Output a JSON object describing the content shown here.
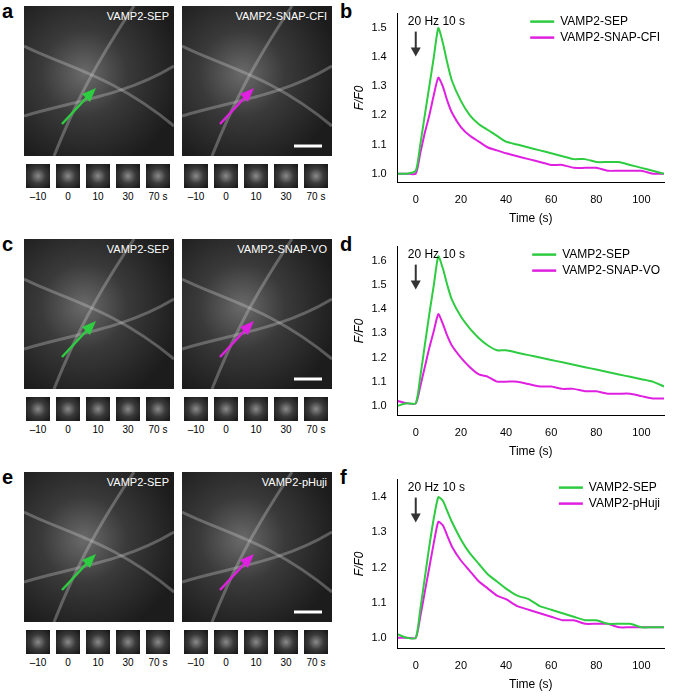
{
  "panels": [
    {
      "letter": "a",
      "images": [
        "VAMP2-SEP",
        "VAMP2-SNAP-CFI"
      ],
      "times": [
        "–10",
        "0",
        "10",
        "30",
        "70 s"
      ]
    },
    {
      "letter": "c",
      "images": [
        "VAMP2-SEP",
        "VAMP2-SNAP-VO"
      ],
      "times": [
        "–10",
        "0",
        "10",
        "30",
        "70 s"
      ]
    },
    {
      "letter": "e",
      "images": [
        "VAMP2-SEP",
        "VAMP2-pHuji"
      ],
      "times": [
        "–10",
        "0",
        "10",
        "30",
        "70 s"
      ]
    }
  ],
  "chart_data": [
    {
      "letter": "b",
      "type": "line",
      "x_label": "Time (s)",
      "y_label": "F/F0",
      "annotation": {
        "text": "20 Hz 10 s",
        "x": 0
      },
      "legend": "upper right",
      "grid": false,
      "xlim": [
        -8,
        110
      ],
      "xticks": [
        0,
        20,
        40,
        60,
        80,
        100
      ],
      "ylim": [
        0.97,
        1.55
      ],
      "yticks": [
        {
          "value": 1,
          "label": "1.0"
        },
        1.1,
        1.2,
        1.3,
        1.4,
        1.5
      ],
      "x": [
        -8,
        -4,
        0,
        2,
        4,
        6,
        8,
        10,
        12,
        14,
        16,
        20,
        24,
        28,
        32,
        36,
        40,
        45,
        50,
        55,
        60,
        65,
        70,
        75,
        80,
        85,
        90,
        95,
        100,
        105,
        110
      ],
      "series": [
        {
          "name": "VAMP2-SEP",
          "color": "#2ecc40",
          "values": [
            1.0,
            1.0,
            1.01,
            1.1,
            1.2,
            1.3,
            1.4,
            1.5,
            1.45,
            1.38,
            1.32,
            1.25,
            1.2,
            1.17,
            1.15,
            1.13,
            1.11,
            1.1,
            1.09,
            1.08,
            1.07,
            1.06,
            1.05,
            1.05,
            1.04,
            1.04,
            1.04,
            1.03,
            1.02,
            1.01,
            1.0
          ]
        },
        {
          "name": "VAMP2-SNAP-CFI",
          "color": "#e020e0",
          "values": [
            1.0,
            1.0,
            1.0,
            1.07,
            1.14,
            1.2,
            1.27,
            1.33,
            1.3,
            1.25,
            1.21,
            1.16,
            1.13,
            1.11,
            1.09,
            1.08,
            1.07,
            1.06,
            1.05,
            1.04,
            1.03,
            1.03,
            1.02,
            1.02,
            1.02,
            1.01,
            1.01,
            1.01,
            1.01,
            1.0,
            1.0
          ]
        }
      ]
    },
    {
      "letter": "d",
      "type": "line",
      "x_label": "Time (s)",
      "y_label": "F/F0",
      "annotation": {
        "text": "20 Hz 10 s",
        "x": 0
      },
      "legend": "upper right",
      "grid": false,
      "xlim": [
        -8,
        110
      ],
      "xticks": [
        0,
        20,
        40,
        60,
        80,
        100
      ],
      "ylim": [
        0.96,
        1.66
      ],
      "yticks": [
        {
          "value": 1,
          "label": "1.0"
        },
        1.1,
        1.2,
        1.3,
        1.4,
        1.5,
        1.6
      ],
      "x": [
        -8,
        -4,
        0,
        2,
        4,
        6,
        8,
        10,
        12,
        14,
        16,
        20,
        24,
        28,
        32,
        36,
        40,
        45,
        50,
        55,
        60,
        65,
        70,
        75,
        80,
        85,
        90,
        95,
        100,
        105,
        110
      ],
      "series": [
        {
          "name": "VAMP2-SEP",
          "color": "#2ecc40",
          "values": [
            1.0,
            1.01,
            1.01,
            1.12,
            1.25,
            1.38,
            1.5,
            1.62,
            1.57,
            1.5,
            1.44,
            1.37,
            1.32,
            1.28,
            1.25,
            1.23,
            1.23,
            1.22,
            1.21,
            1.2,
            1.19,
            1.18,
            1.17,
            1.16,
            1.15,
            1.14,
            1.13,
            1.12,
            1.11,
            1.1,
            1.08
          ]
        },
        {
          "name": "VAMP2-SNAP-VO",
          "color": "#e020e0",
          "values": [
            1.02,
            1.01,
            1.01,
            1.08,
            1.16,
            1.24,
            1.31,
            1.38,
            1.34,
            1.29,
            1.25,
            1.2,
            1.16,
            1.13,
            1.12,
            1.1,
            1.1,
            1.1,
            1.09,
            1.08,
            1.08,
            1.07,
            1.07,
            1.06,
            1.06,
            1.05,
            1.05,
            1.05,
            1.04,
            1.03,
            1.03
          ]
        }
      ]
    },
    {
      "letter": "f",
      "type": "line",
      "x_label": "Time (s)",
      "y_label": "F/F0",
      "annotation": {
        "text": "20 Hz 10 s",
        "x": 0
      },
      "legend": "upper right",
      "grid": false,
      "xlim": [
        -8,
        110
      ],
      "xticks": [
        0,
        20,
        40,
        60,
        80,
        100
      ],
      "ylim": [
        0.97,
        1.45
      ],
      "yticks": [
        {
          "value": 1,
          "label": "1.0"
        },
        1.1,
        1.2,
        1.3,
        1.4
      ],
      "x": [
        -8,
        -4,
        0,
        2,
        4,
        6,
        8,
        10,
        12,
        14,
        16,
        20,
        24,
        28,
        32,
        36,
        40,
        45,
        50,
        55,
        60,
        65,
        70,
        75,
        80,
        85,
        90,
        95,
        100,
        105,
        110
      ],
      "series": [
        {
          "name": "VAMP2-SEP",
          "color": "#2ecc40",
          "values": [
            1.01,
            1.0,
            1.0,
            1.08,
            1.17,
            1.26,
            1.34,
            1.4,
            1.39,
            1.36,
            1.33,
            1.28,
            1.24,
            1.21,
            1.18,
            1.16,
            1.14,
            1.12,
            1.11,
            1.09,
            1.08,
            1.07,
            1.06,
            1.05,
            1.05,
            1.04,
            1.04,
            1.04,
            1.03,
            1.03,
            1.03
          ]
        },
        {
          "name": "VAMP2-pHuji",
          "color": "#e020e0",
          "values": [
            1.0,
            1.0,
            1.0,
            1.06,
            1.13,
            1.2,
            1.27,
            1.33,
            1.32,
            1.29,
            1.26,
            1.22,
            1.19,
            1.16,
            1.14,
            1.12,
            1.11,
            1.09,
            1.08,
            1.07,
            1.06,
            1.05,
            1.05,
            1.04,
            1.04,
            1.04,
            1.03,
            1.03,
            1.03,
            1.03,
            1.03
          ]
        }
      ]
    }
  ]
}
